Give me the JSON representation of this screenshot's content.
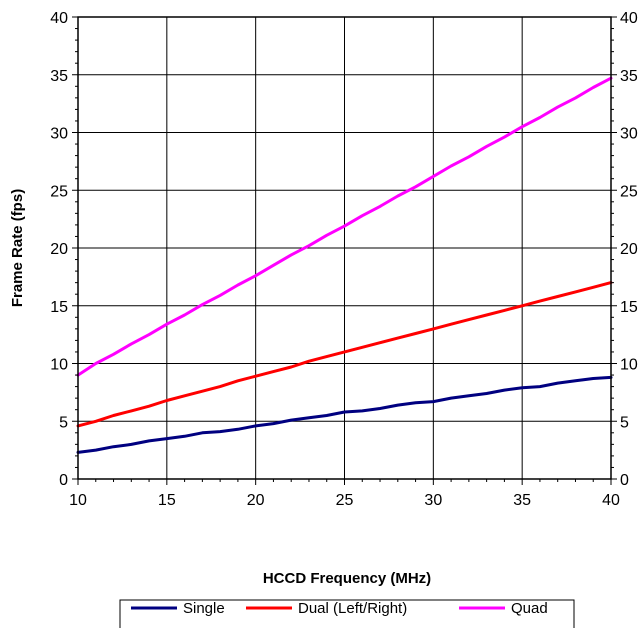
{
  "chart_data": {
    "type": "line",
    "title": "",
    "xlabel": "HCCD Frequency (MHz)",
    "ylabel": "Frame Rate (fps)",
    "xlim": [
      10,
      40
    ],
    "ylim": [
      0,
      40
    ],
    "x_ticks": [
      "10",
      "15",
      "20",
      "25",
      "30",
      "35",
      "40"
    ],
    "y_ticks": [
      "0",
      "5",
      "10",
      "15",
      "20",
      "25",
      "30",
      "35",
      "40"
    ],
    "y2_ticks": [
      "0",
      "5",
      "10",
      "15",
      "20",
      "25",
      "30",
      "35",
      "40"
    ],
    "grid": true,
    "legend_position": "bottom",
    "x": [
      10,
      11,
      12,
      13,
      14,
      15,
      16,
      17,
      18,
      19,
      20,
      21,
      22,
      23,
      24,
      25,
      26,
      27,
      28,
      29,
      30,
      31,
      32,
      33,
      34,
      35,
      36,
      37,
      38,
      39,
      40
    ],
    "series": [
      {
        "name": "Single",
        "color": "#000080",
        "values": [
          2.3,
          2.5,
          2.8,
          3.0,
          3.3,
          3.5,
          3.7,
          4.0,
          4.1,
          4.3,
          4.6,
          4.8,
          5.1,
          5.3,
          5.5,
          5.8,
          5.9,
          6.1,
          6.4,
          6.6,
          6.7,
          7.0,
          7.2,
          7.4,
          7.7,
          7.9,
          8.0,
          8.3,
          8.5,
          8.7,
          8.8
        ]
      },
      {
        "name": "Dual (Left/Right)",
        "color": "#ff0000",
        "values": [
          4.6,
          5.0,
          5.5,
          5.9,
          6.3,
          6.8,
          7.2,
          7.6,
          8.0,
          8.5,
          8.9,
          9.3,
          9.7,
          10.2,
          10.6,
          11.0,
          11.4,
          11.8,
          12.2,
          12.6,
          13.0,
          13.4,
          13.8,
          14.2,
          14.6,
          15.0,
          15.4,
          15.8,
          16.2,
          16.6,
          17.0
        ]
      },
      {
        "name": "Quad",
        "color": "#ff00ff",
        "values": [
          9.0,
          10.0,
          10.8,
          11.7,
          12.5,
          13.4,
          14.2,
          15.1,
          15.9,
          16.8,
          17.6,
          18.5,
          19.4,
          20.2,
          21.1,
          21.9,
          22.8,
          23.6,
          24.5,
          25.3,
          26.2,
          27.1,
          27.9,
          28.8,
          29.6,
          30.5,
          31.3,
          32.2,
          33.0,
          33.9,
          34.7
        ]
      }
    ]
  }
}
